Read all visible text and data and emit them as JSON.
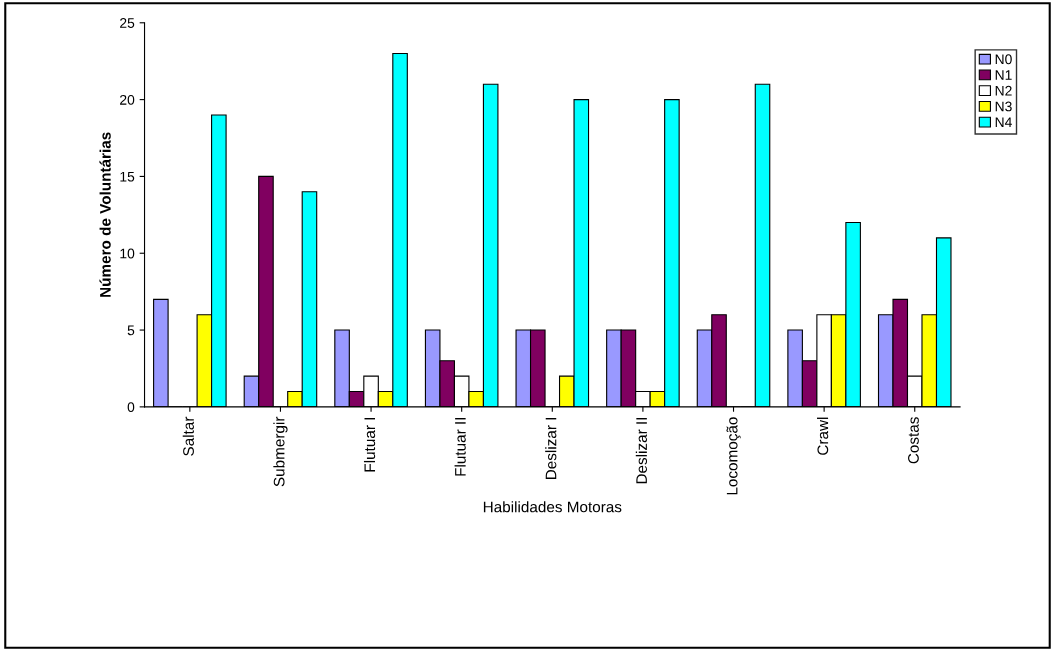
{
  "chart_data": {
    "type": "bar",
    "xlabel": "Habilidades Motoras",
    "ylabel": "Número de Voluntárias",
    "categories": [
      "Saltar",
      "Submergir",
      "Flutuar I",
      "Flutuar II",
      "Deslizar I",
      "Deslizar II",
      "Locomoção",
      "Crawl",
      "Costas"
    ],
    "series": [
      {
        "name": "N0",
        "color": "#9999ff",
        "values": [
          7,
          2,
          5,
          5,
          5,
          5,
          5,
          5,
          6
        ]
      },
      {
        "name": "N1",
        "color": "#800060",
        "values": [
          0,
          15,
          1,
          3,
          5,
          5,
          6,
          3,
          7
        ]
      },
      {
        "name": "N2",
        "color": "#ffffff",
        "values": [
          0,
          0,
          2,
          2,
          0,
          1,
          0,
          6,
          2
        ]
      },
      {
        "name": "N3",
        "color": "#ffff00",
        "values": [
          6,
          1,
          1,
          1,
          2,
          1,
          0,
          6,
          6
        ]
      },
      {
        "name": "N4",
        "color": "#00ffff",
        "values": [
          19,
          14,
          23,
          21,
          20,
          20,
          21,
          12,
          11
        ]
      }
    ],
    "ylim": [
      0,
      25
    ],
    "yticks": [
      0,
      5,
      10,
      15,
      20,
      25
    ],
    "grid": false,
    "legend": "right"
  }
}
